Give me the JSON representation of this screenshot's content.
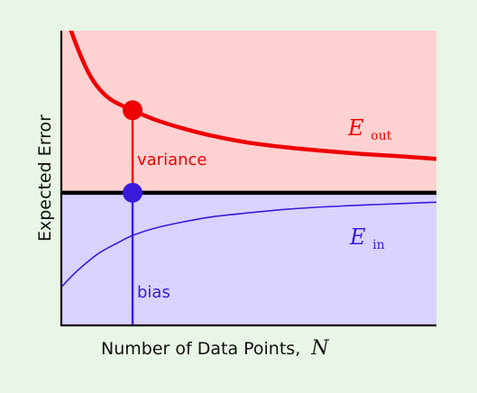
{
  "chart_data": {
    "type": "line",
    "title": "",
    "xlabel": "Number of Data Points,",
    "xlabel_var": "N",
    "ylabel": "Expected Error",
    "xlim": [
      0,
      1
    ],
    "ylim": [
      0,
      1
    ],
    "grid": false,
    "bias_level": 0.45,
    "marker_x": 0.19,
    "series": [
      {
        "name": "E",
        "subscript": "out",
        "color": "#ee0000",
        "fill": "#ffd1d1",
        "x": [
          0.02,
          0.05,
          0.08,
          0.11,
          0.14,
          0.19,
          0.25,
          0.32,
          0.4,
          0.5,
          0.6,
          0.7,
          0.8,
          0.9,
          1.0
        ],
        "y": [
          1.02,
          0.92,
          0.84,
          0.79,
          0.76,
          0.73,
          0.698,
          0.67,
          0.644,
          0.62,
          0.604,
          0.592,
          0.582,
          0.574,
          0.565
        ]
      },
      {
        "name": "E",
        "subscript": "in",
        "color": "#3a1adb",
        "fill": "#d9d3ff",
        "x": [
          0.0,
          0.03,
          0.06,
          0.1,
          0.15,
          0.19,
          0.25,
          0.32,
          0.4,
          0.5,
          0.6,
          0.7,
          0.8,
          0.9,
          1.0
        ],
        "y": [
          0.13,
          0.17,
          0.205,
          0.245,
          0.28,
          0.305,
          0.33,
          0.35,
          0.368,
          0.382,
          0.394,
          0.402,
          0.408,
          0.413,
          0.418
        ]
      }
    ],
    "annotations": [
      {
        "text": "variance",
        "color": "#ee0000"
      },
      {
        "text": "bias",
        "color": "#3a1adb"
      }
    ]
  }
}
